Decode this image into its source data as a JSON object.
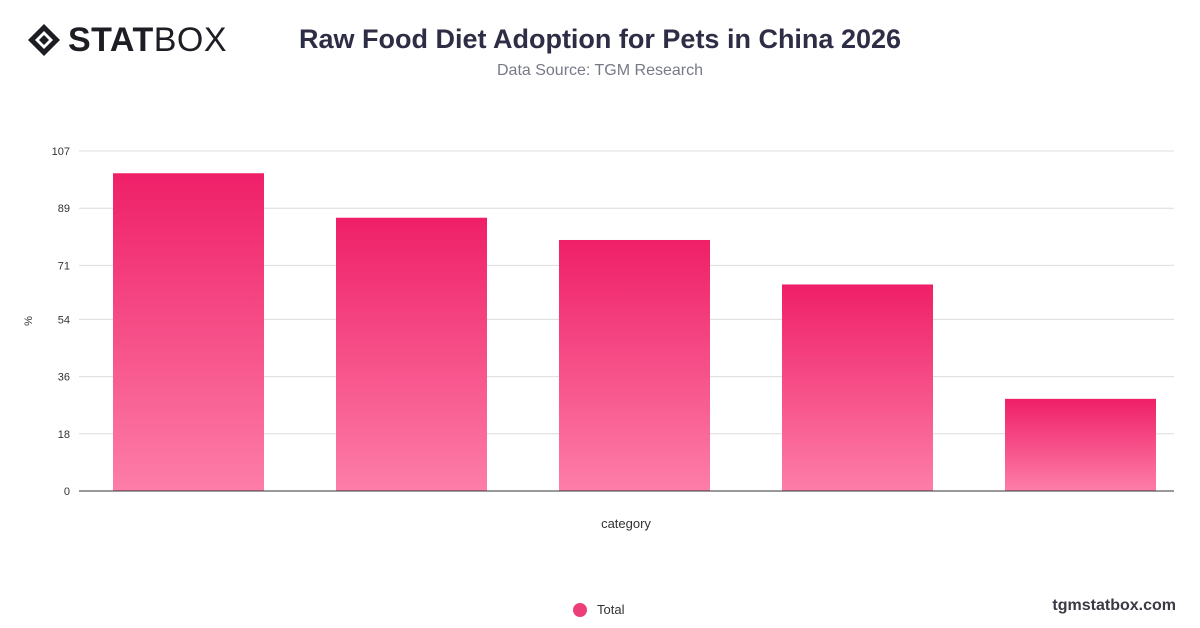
{
  "brand": {
    "logo_stat": "STAT",
    "logo_box": "BOX",
    "site": "tgmstatbox.com"
  },
  "header": {
    "title": "Raw Food Diet Adoption for Pets in China 2026",
    "subtitle": "Data Source: TGM Research"
  },
  "colors": {
    "bar_top": "#ef1f68",
    "bar_bottom": "#fd7ea8",
    "grid": "#dcdcdc",
    "axis": "#333333",
    "legend_dot": "#ec3f7a"
  },
  "chart_data": {
    "type": "bar",
    "categories": [
      "",
      "",
      "",
      "",
      ""
    ],
    "series": [
      {
        "name": "Total",
        "values": [
          100,
          86,
          79,
          65,
          29
        ]
      }
    ],
    "xlabel": "category",
    "ylabel": "%",
    "yticks": [
      0,
      18,
      36,
      54,
      71,
      89,
      107
    ],
    "ylim": [
      0,
      107
    ],
    "grid": true,
    "legend_position": "bottom-center"
  }
}
